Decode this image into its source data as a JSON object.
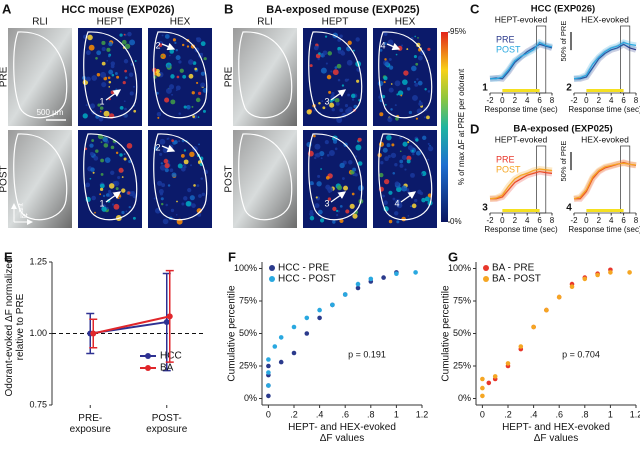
{
  "panel_labels": [
    "A",
    "B",
    "C",
    "D",
    "E",
    "F",
    "G"
  ],
  "imaging": [
    {
      "title": "HCC mouse (EXP026)",
      "columns": [
        "RLI",
        "HEPT",
        "HEX"
      ],
      "rows": [
        "PRE",
        "POST"
      ],
      "scale_bar": "500 µm",
      "orientation": [
        "ant",
        "lat"
      ],
      "arrows": [
        "1",
        "2",
        "1",
        "2"
      ]
    },
    {
      "title": "BA-exposed mouse (EXP025)",
      "columns": [
        "RLI",
        "HEPT",
        "HEX"
      ],
      "rows": [
        "PRE",
        "POST"
      ],
      "arrows": [
        "3",
        "4",
        "3",
        "4"
      ]
    }
  ],
  "colorbar": {
    "label": "% of max ΔF at PRE per odorant",
    "ticks": [
      {
        "value": 0,
        "label": "0%"
      },
      {
        "value": 95,
        "label": "95%"
      }
    ]
  },
  "trace_titles": [
    "HCC (EXP026)",
    "BA-exposed (EXP025)"
  ],
  "chart_data": [
    {
      "type": "line",
      "title": "HEPT-evoked",
      "marker": "1",
      "legend": true,
      "xlabel": "Response time (sec)",
      "x": [
        -2,
        -1,
        0,
        1,
        2,
        3,
        4,
        5,
        6,
        7,
        8
      ],
      "xlim": [
        -2,
        8
      ],
      "xticks": [
        -2,
        0,
        2,
        4,
        6,
        8
      ],
      "ylim": [
        -20,
        140
      ],
      "odor_window": [
        0,
        6
      ],
      "response_window": [
        5.5,
        7
      ],
      "series": [
        {
          "name": "PRE",
          "color": "#2b3a8c",
          "values": [
            0,
            2,
            0,
            20,
            45,
            60,
            75,
            85,
            95,
            90,
            85
          ]
        },
        {
          "name": "POST",
          "color": "#29a8e0",
          "values": [
            0,
            0,
            5,
            25,
            50,
            62,
            70,
            80,
            100,
            92,
            88
          ]
        }
      ]
    },
    {
      "type": "line",
      "title": "HEX-evoked",
      "marker": "2",
      "xlabel": "Response time (sec)",
      "x": [
        -2,
        -1,
        0,
        1,
        2,
        3,
        4,
        5,
        6,
        7,
        8
      ],
      "xlim": [
        -2,
        8
      ],
      "xticks": [
        -2,
        0,
        2,
        4,
        6,
        8
      ],
      "ylim": [
        -20,
        140
      ],
      "odor_window": [
        0,
        6
      ],
      "response_window": [
        5.5,
        7
      ],
      "scale_bar": {
        "value": 50,
        "label": "50% of PRE"
      },
      "series": [
        {
          "name": "PRE",
          "color": "#2b3a8c",
          "values": [
            0,
            0,
            5,
            30,
            55,
            70,
            80,
            85,
            95,
            85,
            80
          ]
        },
        {
          "name": "POST",
          "color": "#29a8e0",
          "values": [
            0,
            3,
            10,
            40,
            60,
            75,
            85,
            90,
            100,
            95,
            92
          ]
        }
      ]
    },
    {
      "type": "line",
      "title": "HEPT-evoked",
      "marker": "3",
      "legend": true,
      "xlabel": "Response time (sec)",
      "x": [
        -2,
        -1,
        0,
        1,
        2,
        3,
        4,
        5,
        6,
        7,
        8
      ],
      "xlim": [
        -2,
        8
      ],
      "xticks": [
        -2,
        0,
        2,
        4,
        6,
        8
      ],
      "ylim": [
        -20,
        140
      ],
      "odor_window": [
        0,
        6
      ],
      "response_window": [
        5.5,
        7
      ],
      "series": [
        {
          "name": "PRE",
          "color": "#e8372b",
          "values": [
            0,
            0,
            5,
            25,
            45,
            55,
            65,
            70,
            75,
            72,
            70
          ]
        },
        {
          "name": "POST",
          "color": "#f5a623",
          "values": [
            0,
            2,
            10,
            35,
            55,
            65,
            70,
            78,
            82,
            80,
            78
          ]
        }
      ]
    },
    {
      "type": "line",
      "title": "HEX-evoked",
      "marker": "4",
      "xlabel": "Response time (sec)",
      "x": [
        -2,
        -1,
        0,
        1,
        2,
        3,
        4,
        5,
        6,
        7,
        8
      ],
      "xlim": [
        -2,
        8
      ],
      "xticks": [
        -2,
        0,
        2,
        4,
        6,
        8
      ],
      "ylim": [
        -20,
        140
      ],
      "odor_window": [
        0,
        6
      ],
      "response_window": [
        5.5,
        7
      ],
      "scale_bar": {
        "value": 50,
        "label": "50% of PRE"
      },
      "series": [
        {
          "name": "PRE",
          "color": "#e8372b",
          "values": [
            0,
            0,
            20,
            55,
            75,
            85,
            90,
            95,
            100,
            95,
            92
          ]
        },
        {
          "name": "POST",
          "color": "#f5a623",
          "values": [
            0,
            5,
            25,
            60,
            78,
            88,
            92,
            96,
            98,
            95,
            93
          ]
        }
      ]
    },
    {
      "type": "errorbar",
      "ylabel": "Odorant-evoked ΔF normalized relative to PRE",
      "categories": [
        "PRE-exposure",
        "POST-exposure"
      ],
      "ylim": [
        0.75,
        1.25
      ],
      "yticks": [
        0.75,
        {
          "value": 1,
          "label": "1.00"
        },
        1.25
      ],
      "reference_line": 1,
      "series": [
        {
          "name": "HCC",
          "color": "#2e3192",
          "values": [
            1,
            1.04
          ],
          "errors": [
            0.07,
            0.17
          ]
        },
        {
          "name": "BA",
          "color": "#e0262b",
          "values": [
            1,
            1.06
          ],
          "errors": [
            0.05,
            0.16
          ]
        }
      ]
    },
    {
      "type": "scatter",
      "ylabel": "Cumulative percentile",
      "xlabel": "HEPT- and HEX-evoked ΔF values",
      "annotation": "p = 0.191",
      "xlim": [
        -0.05,
        1.2
      ],
      "xticks": [
        0,
        {
          "value": 0.2,
          "label": ".2"
        },
        {
          "value": 0.4,
          "label": ".4"
        },
        {
          "value": 0.6,
          "label": ".6"
        },
        {
          "value": 0.8,
          "label": ".8"
        },
        1,
        1.2
      ],
      "ylim": [
        -5,
        105
      ],
      "yticks": [
        {
          "value": 0,
          "label": "0%"
        },
        {
          "value": 25,
          "label": "25%"
        },
        {
          "value": 50,
          "label": "50%"
        },
        {
          "value": 75,
          "label": "75%"
        },
        {
          "value": 100,
          "label": "100%"
        }
      ],
      "series": [
        {
          "name": "HCC - PRE",
          "color": "#2b3a8c",
          "x": [
            0,
            0,
            0,
            0,
            0.1,
            0.2,
            0.3,
            0.4,
            0.5,
            0.6,
            0.7,
            0.8,
            0.9,
            1.0
          ],
          "values": [
            2,
            10,
            18,
            25,
            28,
            35,
            50,
            62,
            72,
            80,
            85,
            90,
            93,
            97
          ]
        },
        {
          "name": "HCC - POST",
          "color": "#29a8e0",
          "x": [
            0,
            0,
            0,
            0.05,
            0.1,
            0.2,
            0.3,
            0.4,
            0.5,
            0.6,
            0.7,
            0.8,
            1.0,
            1.15
          ],
          "values": [
            10,
            20,
            30,
            40,
            47,
            55,
            62,
            68,
            72,
            80,
            88,
            92,
            96,
            97
          ]
        }
      ]
    },
    {
      "type": "scatter",
      "ylabel": "Cumulative percentile",
      "xlabel": "HEPT- and HEX-evoked ΔF values",
      "annotation": "p = 0.704",
      "xlim": [
        -0.05,
        1.2
      ],
      "xticks": [
        0,
        {
          "value": 0.2,
          "label": ".2"
        },
        {
          "value": 0.4,
          "label": ".4"
        },
        {
          "value": 0.6,
          "label": ".6"
        },
        {
          "value": 0.8,
          "label": ".8"
        },
        1,
        1.2
      ],
      "ylim": [
        -5,
        105
      ],
      "yticks": [
        {
          "value": 0,
          "label": "0%"
        },
        {
          "value": 25,
          "label": "25%"
        },
        {
          "value": 50,
          "label": "50%"
        },
        {
          "value": 75,
          "label": "75%"
        },
        {
          "value": 100,
          "label": "100%"
        }
      ],
      "series": [
        {
          "name": "BA - PRE",
          "color": "#e8372b",
          "x": [
            0.05,
            0.1,
            0.2,
            0.3,
            0.4,
            0.5,
            0.6,
            0.7,
            0.8,
            0.9,
            1.0
          ],
          "values": [
            12,
            15,
            25,
            38,
            55,
            68,
            78,
            88,
            93,
            96,
            99
          ]
        },
        {
          "name": "BA - POST",
          "color": "#f5a623",
          "x": [
            0,
            0,
            0,
            0.1,
            0.2,
            0.3,
            0.4,
            0.5,
            0.6,
            0.7,
            0.8,
            0.9,
            1.0,
            1.15
          ],
          "values": [
            2,
            8,
            15,
            17,
            27,
            40,
            55,
            68,
            78,
            86,
            92,
            95,
            97,
            97
          ]
        }
      ]
    }
  ]
}
